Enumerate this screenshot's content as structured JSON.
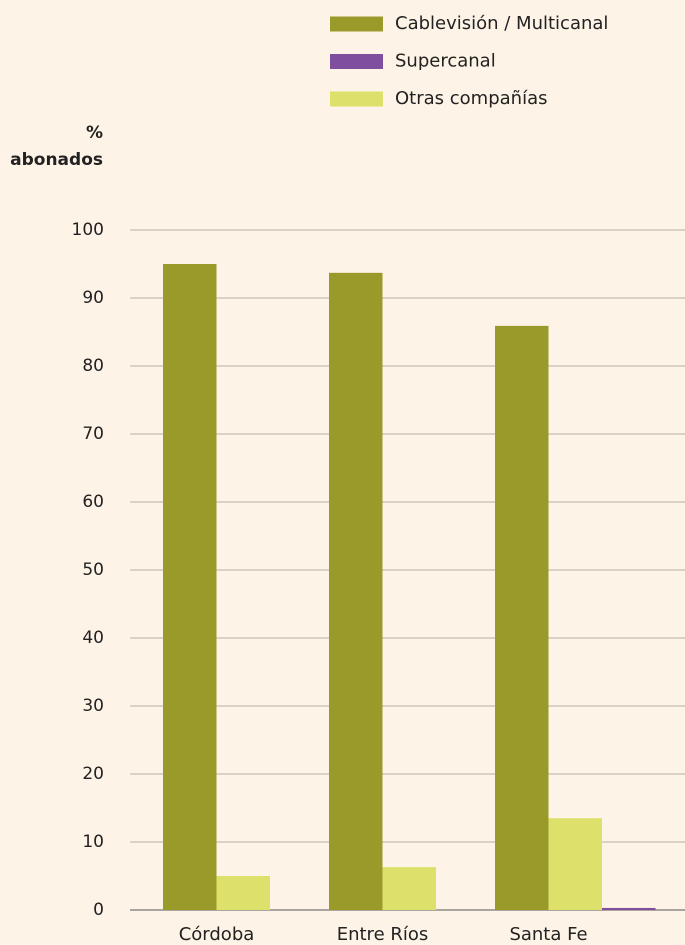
{
  "chart_data": {
    "type": "bar",
    "y_label": [
      "%",
      "abonados"
    ],
    "categories": [
      "Córdoba",
      "Entre Ríos",
      "Santa Fe"
    ],
    "series": [
      {
        "name": "Cablevisión / Multicanal",
        "color": "#9a9a2a",
        "values": [
          95,
          93.7,
          85.9
        ]
      },
      {
        "name": "Supercanal",
        "color": "#7f4f9e",
        "values": [
          0,
          0,
          0.3
        ]
      },
      {
        "name": "Otras compañías",
        "color": "#dde06a",
        "values": [
          5,
          6.3,
          13.5
        ]
      }
    ],
    "ylim": [
      0,
      100
    ],
    "yticks": [
      0,
      10,
      20,
      30,
      40,
      50,
      60,
      70,
      80,
      90,
      100
    ],
    "grid": true
  }
}
